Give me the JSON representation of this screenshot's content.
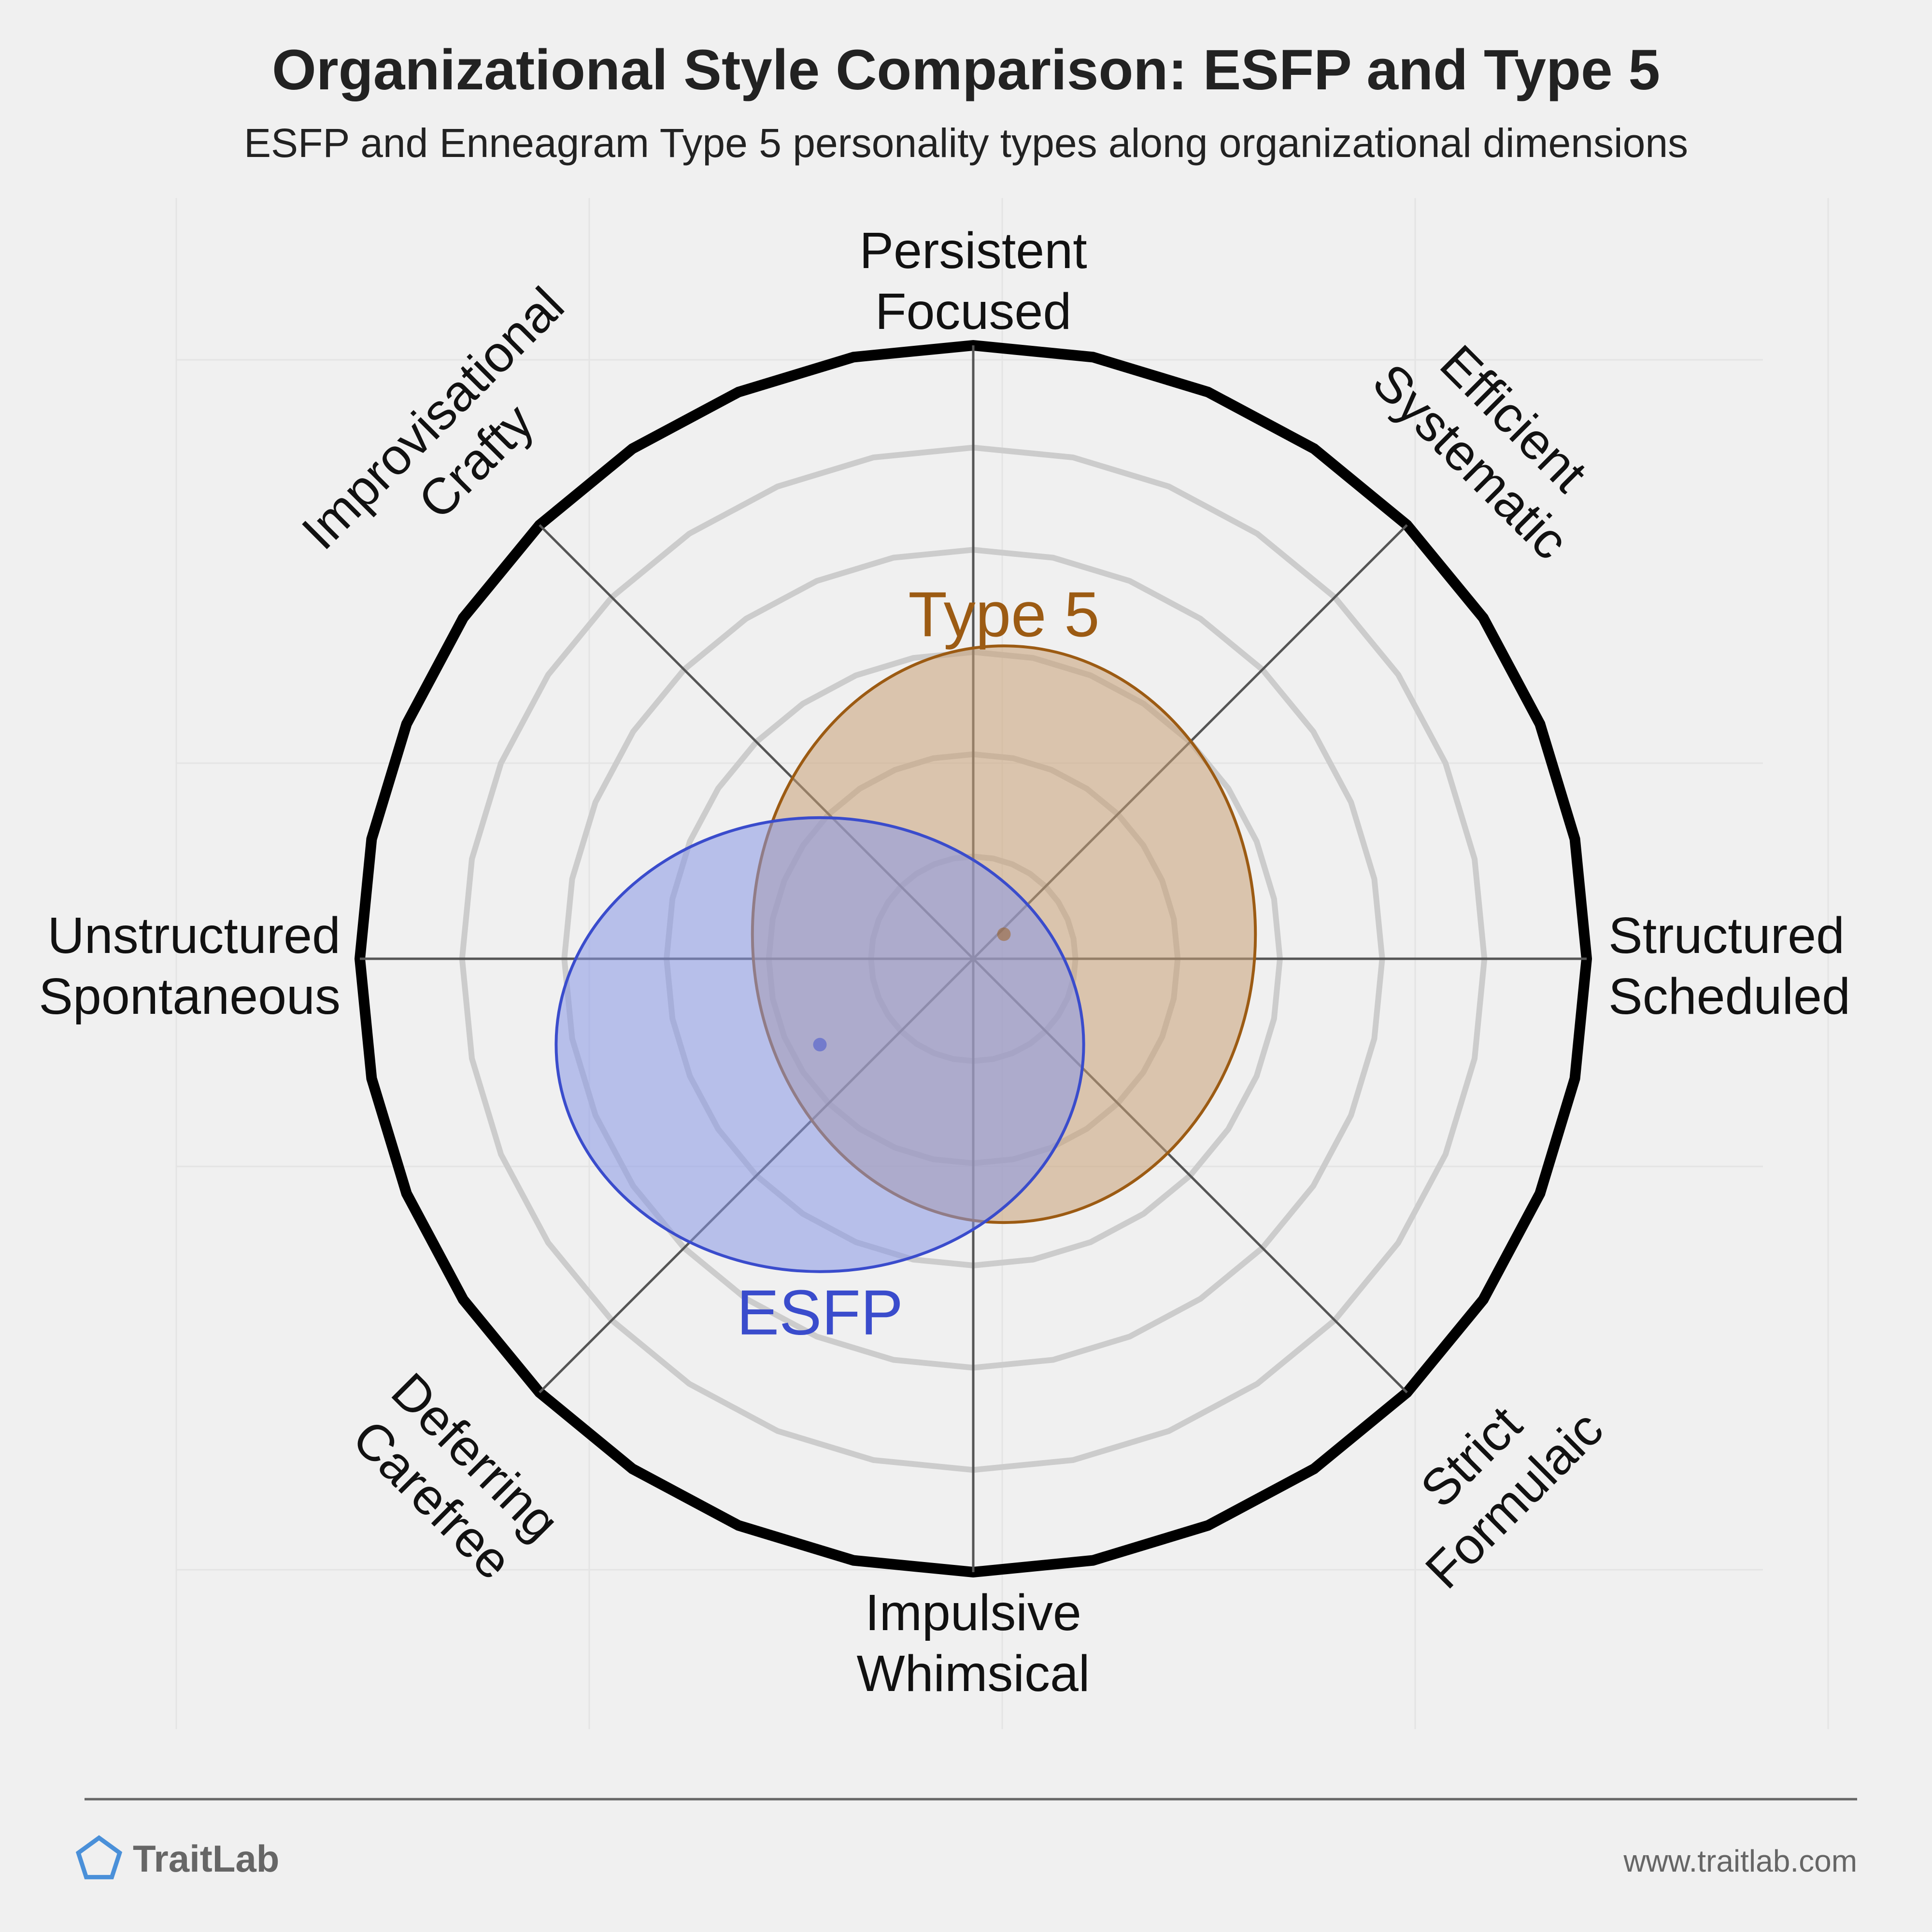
{
  "title": "Organizational Style Comparison: ESFP and Type 5",
  "subtitle": "ESFP and Enneagram Type 5 personality types along organizational dimensions",
  "chart_data": {
    "type": "radar-bubble",
    "axes": [
      {
        "label_lines": [
          "Persistent",
          "Focused"
        ],
        "angle_deg": 90
      },
      {
        "label_lines": [
          "Efficient",
          "Systematic"
        ],
        "angle_deg": 45
      },
      {
        "label_lines": [
          "Structured",
          "Scheduled"
        ],
        "angle_deg": 0
      },
      {
        "label_lines": [
          "Strict",
          "Formulaic"
        ],
        "angle_deg": -45
      },
      {
        "label_lines": [
          "Impulsive",
          "Whimsical"
        ],
        "angle_deg": -90
      },
      {
        "label_lines": [
          "Deferring",
          "Carefree"
        ],
        "angle_deg": -135
      },
      {
        "label_lines": [
          "Unstructured",
          "Spontaneous"
        ],
        "angle_deg": 180
      },
      {
        "label_lines": [
          "Improvisational",
          "Crafty"
        ],
        "angle_deg": 135
      }
    ],
    "rings": 6,
    "grid": true,
    "series": [
      {
        "name": "Type 5",
        "color": "#9c5b13",
        "fill": "#c9a176",
        "x": 0.05,
        "y": 0.04,
        "rx": 0.41,
        "ry": 0.47
      },
      {
        "name": "ESFP",
        "color": "#3a4ccc",
        "fill": "#8898e6",
        "x": -0.25,
        "y": -0.14,
        "rx": 0.43,
        "ry": 0.37
      }
    ]
  },
  "footer": {
    "brand": "TraitLab",
    "url": "www.traitlab.com"
  },
  "colors": {
    "background": "#f0f0f0",
    "outer_ring": "#000000",
    "inner_rings": "#cccccc",
    "spokes": "#555555",
    "logo": "#4a90d9"
  }
}
